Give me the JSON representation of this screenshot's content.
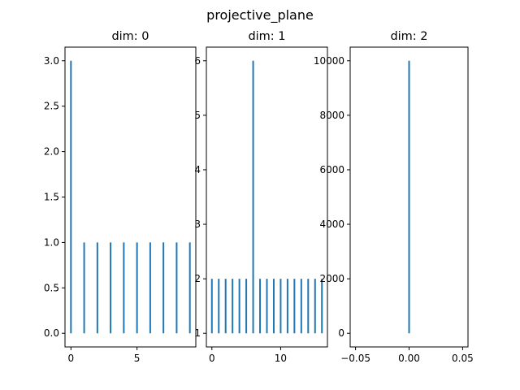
{
  "figure_title": "projective_plane",
  "colors": {
    "series": "#1f77b4",
    "axes": "#000000",
    "background": "#ffffff"
  },
  "chart_data": [
    {
      "type": "bar",
      "title": "dim: 0",
      "xlabel": "",
      "ylabel": "",
      "x": [
        0,
        1,
        2,
        3,
        4,
        5,
        6,
        7,
        8,
        9
      ],
      "values": [
        3,
        1,
        1,
        1,
        1,
        1,
        1,
        1,
        1,
        1
      ],
      "baseline": 0,
      "xlim": [
        -0.45,
        9.45
      ],
      "ylim": [
        -0.15,
        3.15
      ],
      "xticks": [
        0,
        5
      ],
      "xticklabels": [
        "0",
        "5"
      ],
      "yticks": [
        0,
        0.5,
        1,
        1.5,
        2,
        2.5,
        3
      ],
      "yticklabels": [
        "0.0",
        "0.5",
        "1.0",
        "1.5",
        "2.0",
        "2.5",
        "3.0"
      ],
      "grid": false
    },
    {
      "type": "bar",
      "title": "dim: 1",
      "xlabel": "",
      "ylabel": "",
      "x": [
        0,
        1,
        2,
        3,
        4,
        5,
        6,
        7,
        8,
        9,
        10,
        11,
        12,
        13,
        14,
        15,
        16
      ],
      "values": [
        2,
        2,
        2,
        2,
        2,
        2,
        6,
        2,
        2,
        2,
        2,
        2,
        2,
        2,
        2,
        2,
        2
      ],
      "baseline": 1,
      "xlim": [
        -0.8,
        16.8
      ],
      "ylim": [
        0.75,
        6.25
      ],
      "xticks": [
        0,
        10
      ],
      "xticklabels": [
        "0",
        "10"
      ],
      "yticks": [
        1,
        2,
        3,
        4,
        5,
        6
      ],
      "yticklabels": [
        "1",
        "2",
        "3",
        "4",
        "5",
        "6"
      ],
      "grid": false
    },
    {
      "type": "bar",
      "title": "dim: 2",
      "xlabel": "",
      "ylabel": "",
      "x": [
        0
      ],
      "values": [
        10000
      ],
      "baseline": 0,
      "xlim": [
        -0.055,
        0.055
      ],
      "ylim": [
        -500,
        10500
      ],
      "xticks": [
        -0.05,
        0,
        0.05
      ],
      "xticklabels": [
        "−0.05",
        "0.00",
        "0.05"
      ],
      "yticks": [
        0,
        2000,
        4000,
        6000,
        8000,
        10000
      ],
      "yticklabels": [
        "0",
        "2000",
        "4000",
        "6000",
        "8000",
        "10000"
      ],
      "grid": false
    }
  ]
}
